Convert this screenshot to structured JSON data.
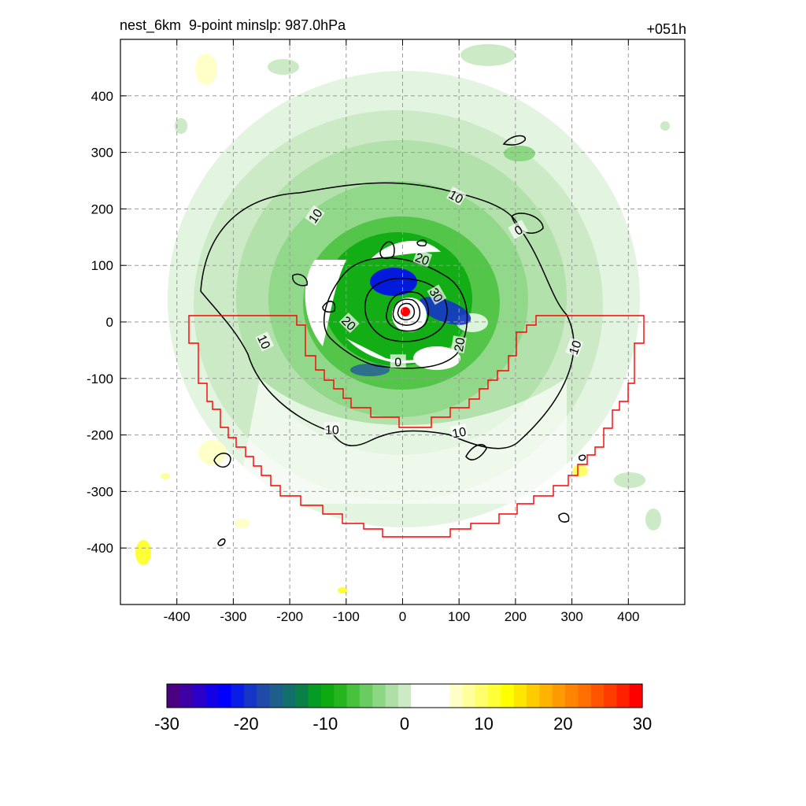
{
  "chart_data": {
    "type": "contour_map",
    "title_left": "nest_6km  9-point minslp: 987.0hPa",
    "title_right": "+051h",
    "xlim": [
      -500,
      500
    ],
    "ylim": [
      -500,
      500
    ],
    "x_ticks": [
      -400,
      -300,
      -200,
      -100,
      0,
      100,
      200,
      300,
      400
    ],
    "y_ticks": [
      400,
      300,
      200,
      100,
      0,
      -100,
      -200,
      -300,
      -400
    ],
    "grid": true,
    "center": [
      5,
      18
    ],
    "colorbar": {
      "min": -30,
      "max": 30,
      "ticks": [
        -30,
        -20,
        -10,
        0,
        10,
        20,
        30
      ],
      "colors": [
        "#4b0082",
        "#3e00a5",
        "#2b00c8",
        "#1400e8",
        "#0000ff",
        "#0a1de6",
        "#1535c8",
        "#1f4aa8",
        "#1d5e8a",
        "#11706c",
        "#0a8048",
        "#049c25",
        "#0caa10",
        "#25b51e",
        "#48c23c",
        "#6acc60",
        "#8cd684",
        "#addfa6",
        "#cdeac6",
        "#ffffff",
        "#ffffff",
        "#ffffff",
        "#ffffc8",
        "#ffff9b",
        "#ffff6e",
        "#ffff37",
        "#ffff00",
        "#ffe600",
        "#ffcc00",
        "#ffb200",
        "#ff9b00",
        "#ff8400",
        "#ff6e00",
        "#ff5500",
        "#ff3c00",
        "#ff2000",
        "#ff0000"
      ]
    },
    "contour_labels": [
      {
        "text": "10",
        "x": -155,
        "y": 188,
        "angle": -55
      },
      {
        "text": "10",
        "x": 95,
        "y": 222,
        "angle": 30
      },
      {
        "text": "10",
        "x": -245,
        "y": -35,
        "angle": 65
      },
      {
        "text": "10",
        "x": 305,
        "y": -45,
        "angle": -70
      },
      {
        "text": "10",
        "x": -125,
        "y": -190,
        "angle": 0
      },
      {
        "text": "10",
        "x": 100,
        "y": -195,
        "angle": -10
      },
      {
        "text": "0",
        "x": 205,
        "y": 163,
        "angle": -30
      },
      {
        "text": "20",
        "x": 35,
        "y": 112,
        "angle": 20
      },
      {
        "text": "20",
        "x": -95,
        "y": -2,
        "angle": 45
      },
      {
        "text": "20",
        "x": 100,
        "y": -40,
        "angle": -80
      },
      {
        "text": "30",
        "x": 60,
        "y": 48,
        "angle": 60
      },
      {
        "text": "0",
        "x": -8,
        "y": -70,
        "angle": 0
      }
    ]
  }
}
